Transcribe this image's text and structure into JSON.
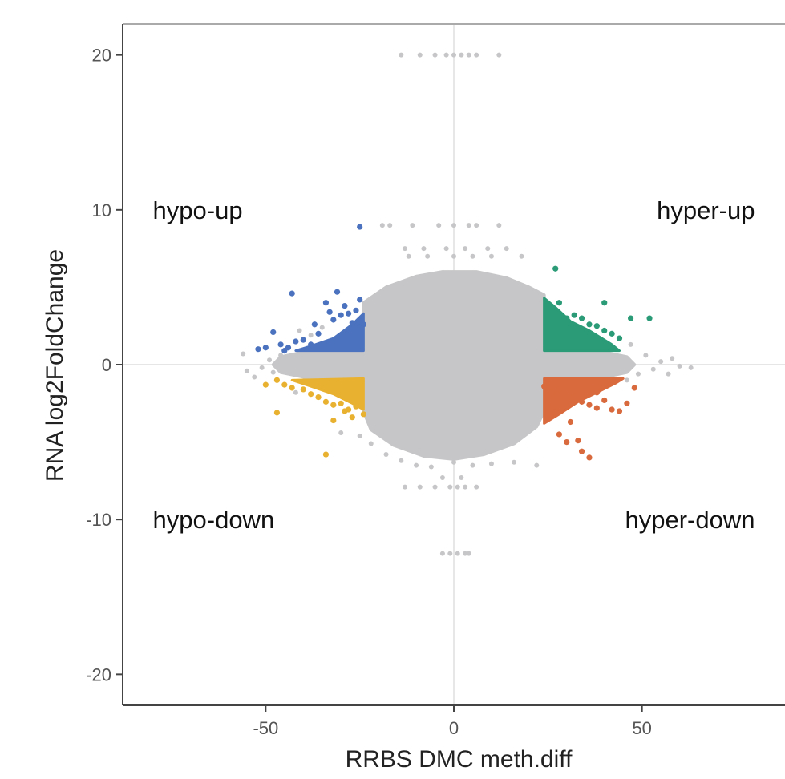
{
  "chart_data": {
    "type": "scatter",
    "title": "",
    "xlabel": "RRBS DMC meth.diff",
    "ylabel": "RNA log2FoldChange",
    "xlim": [
      -88,
      88
    ],
    "ylim": [
      -22,
      22
    ],
    "x_ticks": [
      -50,
      0,
      50
    ],
    "y_ticks": [
      -20,
      -10,
      0,
      10,
      20
    ],
    "x_tick_labels": [
      "-50",
      "0",
      "50"
    ],
    "y_tick_labels": [
      "-20",
      "-10",
      "0",
      "10",
      "20"
    ],
    "grid": false,
    "reference_lines": {
      "x": 0,
      "y": 0
    },
    "quadrant_labels": [
      {
        "text": "hypo-up",
        "x": -80,
        "y": 10,
        "anchor": "start"
      },
      {
        "text": "hyper-up",
        "x": 80,
        "y": 10,
        "anchor": "end"
      },
      {
        "text": "hypo-down",
        "x": -80,
        "y": -10,
        "anchor": "start"
      },
      {
        "text": "hyper-down",
        "x": 80,
        "y": -10,
        "anchor": "end"
      }
    ],
    "series": [
      {
        "group": "background",
        "color": "#c6c6c8",
        "points": [
          [
            -14,
            20
          ],
          [
            -9,
            20
          ],
          [
            -5,
            20
          ],
          [
            -2,
            20
          ],
          [
            0,
            20
          ],
          [
            2,
            20
          ],
          [
            4,
            20
          ],
          [
            6,
            20
          ],
          [
            12,
            20
          ],
          [
            -19,
            9
          ],
          [
            -17,
            9
          ],
          [
            -11,
            9
          ],
          [
            -4,
            9
          ],
          [
            0,
            9
          ],
          [
            4,
            9
          ],
          [
            6,
            9
          ],
          [
            12,
            9
          ],
          [
            -13,
            7.5
          ],
          [
            -8,
            7.5
          ],
          [
            -2,
            7.5
          ],
          [
            3,
            7.5
          ],
          [
            9,
            7.5
          ],
          [
            14,
            7.5
          ],
          [
            -12,
            7
          ],
          [
            -7,
            7
          ],
          [
            0,
            7
          ],
          [
            5,
            7
          ],
          [
            10,
            7
          ],
          [
            18,
            7
          ],
          [
            -56,
            0.7
          ],
          [
            -55,
            -0.4
          ],
          [
            -52,
            1.0
          ],
          [
            -53,
            -0.8
          ],
          [
            -51,
            -0.2
          ],
          [
            -49,
            0.3
          ],
          [
            -48,
            -0.5
          ],
          [
            -46,
            0.6
          ],
          [
            -45,
            -0.3
          ],
          [
            -41,
            2.2
          ],
          [
            -38,
            1.9
          ],
          [
            -35,
            2.4
          ],
          [
            -42,
            -1.8
          ],
          [
            51,
            0.6
          ],
          [
            53,
            -0.3
          ],
          [
            55,
            0.2
          ],
          [
            58,
            0.4
          ],
          [
            60,
            -0.1
          ],
          [
            63,
            -0.2
          ],
          [
            47,
            1.3
          ],
          [
            49,
            -0.6
          ],
          [
            46,
            -1.0
          ],
          [
            57,
            -0.6
          ],
          [
            -30,
            -4.4
          ],
          [
            -25,
            -4.6
          ],
          [
            -22,
            -5.1
          ],
          [
            -18,
            -5.8
          ],
          [
            -14,
            -6.2
          ],
          [
            -10,
            -6.5
          ],
          [
            -6,
            -6.6
          ],
          [
            0,
            -6.3
          ],
          [
            5,
            -6.5
          ],
          [
            10,
            -6.4
          ],
          [
            16,
            -6.3
          ],
          [
            22,
            -6.5
          ],
          [
            -13,
            -7.9
          ],
          [
            -9,
            -7.9
          ],
          [
            -5,
            -7.9
          ],
          [
            -1,
            -7.9
          ],
          [
            1,
            -7.9
          ],
          [
            3,
            -7.9
          ],
          [
            6,
            -7.9
          ],
          [
            -3,
            -7.3
          ],
          [
            2,
            -7.3
          ],
          [
            -3,
            -12.2
          ],
          [
            -1,
            -12.2
          ],
          [
            1,
            -12.2
          ],
          [
            3,
            -12.2
          ],
          [
            4,
            -12.2
          ]
        ]
      },
      {
        "group": "hypo-up",
        "color": "#4a72be",
        "points": [
          [
            -43,
            4.6
          ],
          [
            -31,
            4.7
          ],
          [
            -25,
            4.2
          ],
          [
            -34,
            4.0
          ],
          [
            -29,
            3.8
          ],
          [
            -30,
            3.2
          ],
          [
            -28,
            3.3
          ],
          [
            -32,
            2.9
          ],
          [
            -26,
            3.5
          ],
          [
            -27,
            2.7
          ],
          [
            -24,
            2.6
          ],
          [
            -25,
            1.7
          ],
          [
            -36,
            2.0
          ],
          [
            -48,
            2.1
          ],
          [
            -46,
            1.3
          ],
          [
            -44,
            1.1
          ],
          [
            -42,
            1.5
          ],
          [
            -40,
            1.6
          ],
          [
            -38,
            1.3
          ],
          [
            -45,
            0.9
          ],
          [
            -50,
            1.1
          ],
          [
            -52,
            1.0
          ],
          [
            -25,
            8.9
          ],
          [
            -33,
            3.4
          ],
          [
            -37,
            2.6
          ]
        ]
      },
      {
        "group": "hyper-up",
        "color": "#2a9b76",
        "points": [
          [
            27,
            6.2
          ],
          [
            26,
            3.5
          ],
          [
            28,
            4.0
          ],
          [
            30,
            3.0
          ],
          [
            32,
            3.2
          ],
          [
            34,
            3.0
          ],
          [
            36,
            2.6
          ],
          [
            38,
            2.5
          ],
          [
            40,
            2.2
          ],
          [
            42,
            2.0
          ],
          [
            44,
            1.7
          ],
          [
            40,
            4.0
          ],
          [
            47,
            3.0
          ],
          [
            26,
            2.0
          ],
          [
            29,
            1.8
          ],
          [
            31,
            2.4
          ],
          [
            33,
            1.6
          ],
          [
            35,
            1.9
          ],
          [
            37,
            1.4
          ],
          [
            39,
            1.3
          ],
          [
            52,
            3.0
          ]
        ]
      },
      {
        "group": "hypo-down",
        "color": "#e9b130",
        "points": [
          [
            -50,
            -1.3
          ],
          [
            -47,
            -1.0
          ],
          [
            -45,
            -1.3
          ],
          [
            -43,
            -1.5
          ],
          [
            -40,
            -1.6
          ],
          [
            -38,
            -1.9
          ],
          [
            -36,
            -2.1
          ],
          [
            -34,
            -2.4
          ],
          [
            -32,
            -2.6
          ],
          [
            -30,
            -2.5
          ],
          [
            -28,
            -2.9
          ],
          [
            -26,
            -2.7
          ],
          [
            -24,
            -3.2
          ],
          [
            -29,
            -3.0
          ],
          [
            -27,
            -3.4
          ],
          [
            -32,
            -3.6
          ],
          [
            -47,
            -3.1
          ],
          [
            -34,
            -5.8
          ],
          [
            -25,
            -2.1
          ],
          [
            -36,
            -1.4
          ]
        ]
      },
      {
        "group": "hyper-down",
        "color": "#d86a3d",
        "points": [
          [
            24,
            -1.4
          ],
          [
            26,
            -1.8
          ],
          [
            28,
            -1.6
          ],
          [
            30,
            -2.3
          ],
          [
            32,
            -2.0
          ],
          [
            34,
            -2.4
          ],
          [
            36,
            -2.6
          ],
          [
            38,
            -2.8
          ],
          [
            40,
            -2.3
          ],
          [
            42,
            -2.9
          ],
          [
            44,
            -3.0
          ],
          [
            46,
            -2.5
          ],
          [
            48,
            -1.5
          ],
          [
            28,
            -4.5
          ],
          [
            30,
            -5.0
          ],
          [
            33,
            -4.9
          ],
          [
            34,
            -5.6
          ],
          [
            36,
            -6.0
          ],
          [
            31,
            -3.7
          ],
          [
            27,
            -3.0
          ],
          [
            25,
            -2.6
          ],
          [
            38,
            -1.8
          ]
        ]
      }
    ],
    "density_cloud": {
      "color": "#c6c6c8",
      "polygon": [
        [
          -3,
          6.0
        ],
        [
          -10,
          5.7
        ],
        [
          -18,
          5.0
        ],
        [
          -24,
          4.0
        ],
        [
          -24,
          0.9
        ],
        [
          -30,
          0.9
        ],
        [
          -40,
          0.8
        ],
        [
          -46,
          0.5
        ],
        [
          -48,
          0.0
        ],
        [
          -46,
          -0.5
        ],
        [
          -40,
          -0.8
        ],
        [
          -30,
          -0.9
        ],
        [
          -24,
          -0.9
        ],
        [
          -24,
          -3.0
        ],
        [
          -22,
          -4.2
        ],
        [
          -16,
          -5.2
        ],
        [
          -8,
          -5.9
        ],
        [
          0,
          -6.1
        ],
        [
          8,
          -5.8
        ],
        [
          16,
          -5.1
        ],
        [
          22,
          -4.0
        ],
        [
          24,
          -3.0
        ],
        [
          24,
          -0.9
        ],
        [
          30,
          -0.9
        ],
        [
          40,
          -0.8
        ],
        [
          46,
          -0.5
        ],
        [
          48,
          0.0
        ],
        [
          46,
          0.5
        ],
        [
          40,
          0.8
        ],
        [
          30,
          0.9
        ],
        [
          24,
          0.9
        ],
        [
          24,
          4.5
        ],
        [
          20,
          5.0
        ],
        [
          14,
          5.6
        ],
        [
          6,
          6.0
        ]
      ]
    }
  }
}
